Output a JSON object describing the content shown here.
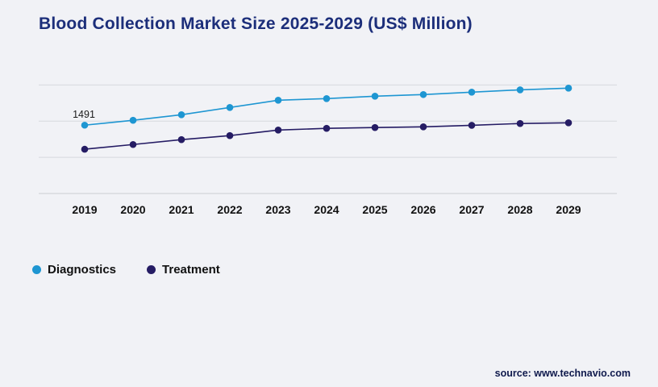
{
  "title": "Blood Collection Market Size 2025-2029 (US$ Million)",
  "source": "source: www.technavio.com",
  "colors": {
    "background": "#f1f2f6",
    "title": "#1c2e7a",
    "grid": "#d7d9de",
    "diagnostics": "#1e96d2",
    "treatment": "#251c64",
    "tick_label": "#111111"
  },
  "legend": [
    {
      "label": "Diagnostics",
      "color": "#1e96d2"
    },
    {
      "label": "Treatment",
      "color": "#251c64"
    }
  ],
  "chart_data": {
    "type": "line",
    "title": "Blood Collection Market Size 2025-2029 (US$ Million)",
    "x": [
      "2019",
      "2020",
      "2021",
      "2022",
      "2023",
      "2024",
      "2025",
      "2026",
      "2027",
      "2028",
      "2029"
    ],
    "series": [
      {
        "name": "Diagnostics",
        "color": "#1e96d2",
        "values": [
          1491,
          1526,
          1566,
          1618,
          1670,
          1682,
          1699,
          1711,
          1728,
          1745,
          1757
        ]
      },
      {
        "name": "Treatment",
        "color": "#251c64",
        "values": [
          1318,
          1352,
          1387,
          1416,
          1456,
          1468,
          1474,
          1479,
          1490,
          1503,
          1508
        ]
      }
    ],
    "ylim": [
      1000,
      1840
    ],
    "xlabel": "",
    "ylabel": "",
    "grid": true,
    "legend_position": "bottom-left",
    "annotations": [
      {
        "series": "Diagnostics",
        "x": "2019",
        "text": "1491"
      }
    ]
  }
}
